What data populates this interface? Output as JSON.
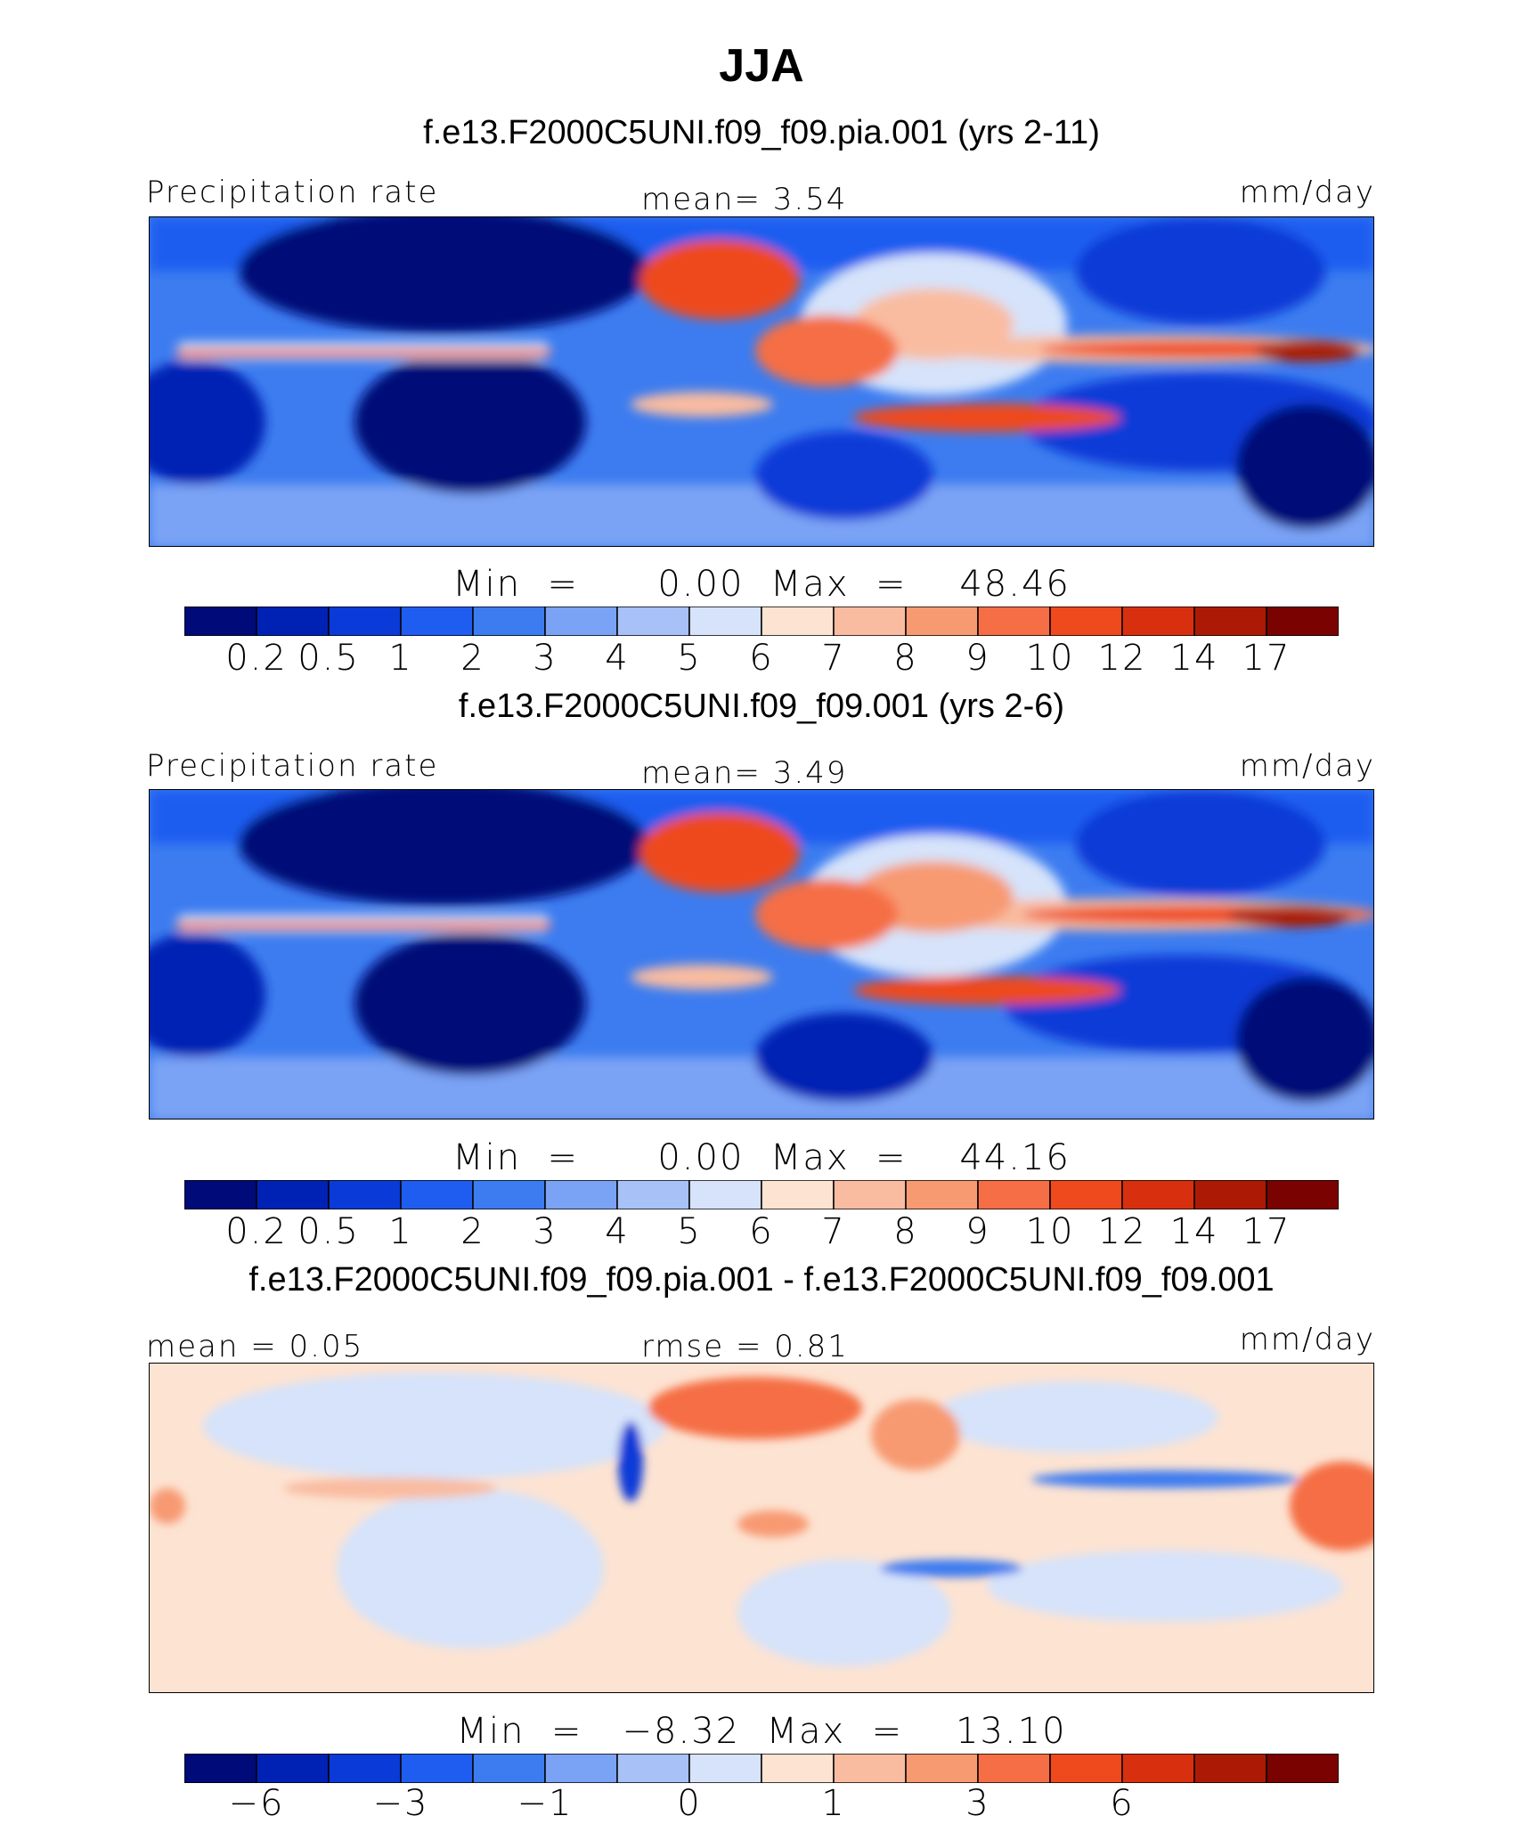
{
  "season_title": "JJA",
  "colors": {
    "levels": [
      "#000a78",
      "#0022b4",
      "#0a3ad7",
      "#1f5df0",
      "#3c7cf0",
      "#7aa3f5",
      "#a8c1f7",
      "#d6e3fa",
      "#fde3d2",
      "#f9bca0",
      "#f79a72",
      "#f56e45",
      "#ee4a1e",
      "#d8300e",
      "#ac1a06",
      "#7a0200"
    ],
    "land_outline": "#000000"
  },
  "panels": [
    {
      "subtitle": "f.e13.F2000C5UNI.f09_f09.pia.001 (yrs 2-11)",
      "left_label": "Precipitation  rate",
      "center_label": "mean=    3.54",
      "units": "mm/day",
      "minmax": "Min  =      0.00  Max  =    48.46",
      "tick_labels": [
        "0.2",
        "0.5",
        "1",
        "2",
        "3",
        "4",
        "5",
        "6",
        "7",
        "8",
        "9",
        "10",
        "12",
        "14",
        "17"
      ]
    },
    {
      "subtitle": "f.e13.F2000C5UNI.f09_f09.001 (yrs 2-6)",
      "left_label": "Precipitation  rate",
      "center_label": "mean=    3.49",
      "units": "mm/day",
      "minmax": "Min  =      0.00  Max  =    44.16",
      "tick_labels": [
        "0.2",
        "0.5",
        "1",
        "2",
        "3",
        "4",
        "5",
        "6",
        "7",
        "8",
        "9",
        "10",
        "12",
        "14",
        "17"
      ]
    },
    {
      "subtitle": "f.e13.F2000C5UNI.f09_f09.pia.001 - f.e13.F2000C5UNI.f09_f09.001",
      "left_label": "mean  =     0.05",
      "center_label": "rmse  =     0.81",
      "units": "mm/day",
      "minmax": "Min  =   −8.32  Max  =    13.10",
      "tick_labels": [
        "−6",
        "",
        "−3",
        "",
        "−1",
        "",
        "0",
        "",
        "1",
        "",
        "3",
        "",
        "6",
        "",
        ""
      ]
    }
  ],
  "chart_data": [
    {
      "type": "heatmap",
      "title": "JJA",
      "subtitle": "f.e13.F2000C5UNI.f09_f09.pia.001 (yrs 2-11)",
      "variable": "Precipitation  rate",
      "units": "mm/day",
      "mean": 3.54,
      "min": 0.0,
      "max": 48.46,
      "contour_levels": [
        0.2,
        0.5,
        1,
        2,
        3,
        4,
        5,
        6,
        7,
        8,
        9,
        10,
        12,
        14,
        17
      ]
    },
    {
      "type": "heatmap",
      "subtitle": "f.e13.F2000C5UNI.f09_f09.001 (yrs 2-6)",
      "variable": "Precipitation  rate",
      "units": "mm/day",
      "mean": 3.49,
      "min": 0.0,
      "max": 44.16,
      "contour_levels": [
        0.2,
        0.5,
        1,
        2,
        3,
        4,
        5,
        6,
        7,
        8,
        9,
        10,
        12,
        14,
        17
      ]
    },
    {
      "type": "heatmap",
      "subtitle": "f.e13.F2000C5UNI.f09_f09.pia.001 - f.e13.F2000C5UNI.f09_f09.001",
      "units": "mm/day",
      "mean": 0.05,
      "rmse": 0.81,
      "min": -8.32,
      "max": 13.1,
      "labeled_levels": [
        -6,
        -3,
        -1,
        0,
        1,
        3,
        6
      ]
    }
  ]
}
